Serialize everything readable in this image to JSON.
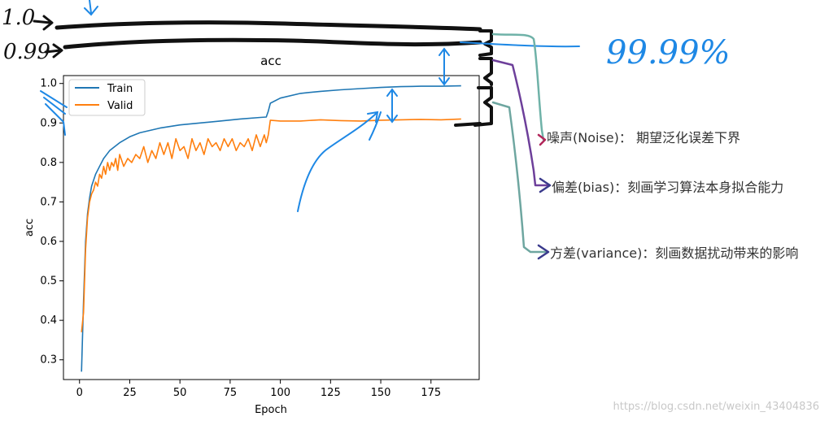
{
  "chart_data": {
    "type": "line",
    "title": "acc",
    "xlabel": "Epoch",
    "ylabel": "acc",
    "xlim": [
      -8,
      199
    ],
    "ylim": [
      0.25,
      1.02
    ],
    "xticks": [
      0,
      25,
      50,
      75,
      100,
      125,
      150,
      175
    ],
    "yticks": [
      0.3,
      0.4,
      0.5,
      0.6,
      0.7,
      0.8,
      0.9,
      1.0
    ],
    "xtick_labels": [
      "0",
      "25",
      "50",
      "75",
      "100",
      "125",
      "150",
      "175"
    ],
    "ytick_labels": [
      "0.3",
      "0.4",
      "0.5",
      "0.6",
      "0.7",
      "0.8",
      "0.9",
      "1.0"
    ],
    "legend_position": "top-left",
    "series": [
      {
        "name": "Train",
        "color": "#1f77b4",
        "x": [
          1,
          2,
          3,
          4,
          5,
          6,
          8,
          10,
          12,
          15,
          20,
          25,
          30,
          40,
          50,
          60,
          70,
          80,
          90,
          93,
          94,
          95,
          100,
          110,
          120,
          130,
          140,
          150,
          160,
          170,
          180,
          190
        ],
        "y": [
          0.27,
          0.45,
          0.6,
          0.67,
          0.71,
          0.74,
          0.77,
          0.79,
          0.81,
          0.83,
          0.85,
          0.865,
          0.875,
          0.887,
          0.895,
          0.9,
          0.905,
          0.91,
          0.914,
          0.915,
          0.93,
          0.95,
          0.963,
          0.975,
          0.98,
          0.984,
          0.987,
          0.99,
          0.992,
          0.993,
          0.993,
          0.994
        ]
      },
      {
        "name": "Valid",
        "color": "#ff7f0e",
        "x": [
          1,
          2,
          3,
          4,
          5,
          6,
          7,
          8,
          9,
          10,
          11,
          12,
          13,
          14,
          15,
          16,
          17,
          18,
          19,
          20,
          22,
          24,
          26,
          28,
          30,
          32,
          34,
          36,
          38,
          40,
          42,
          44,
          46,
          48,
          50,
          52,
          54,
          56,
          58,
          60,
          62,
          64,
          66,
          68,
          70,
          72,
          74,
          76,
          78,
          80,
          82,
          84,
          86,
          88,
          90,
          92,
          93,
          94,
          95,
          100,
          110,
          120,
          130,
          140,
          150,
          160,
          170,
          180,
          190
        ],
        "y": [
          0.37,
          0.42,
          0.58,
          0.66,
          0.7,
          0.72,
          0.73,
          0.75,
          0.74,
          0.77,
          0.76,
          0.79,
          0.77,
          0.8,
          0.78,
          0.8,
          0.79,
          0.81,
          0.78,
          0.82,
          0.79,
          0.81,
          0.8,
          0.82,
          0.81,
          0.84,
          0.8,
          0.83,
          0.81,
          0.85,
          0.82,
          0.85,
          0.81,
          0.86,
          0.83,
          0.84,
          0.81,
          0.86,
          0.83,
          0.85,
          0.82,
          0.86,
          0.84,
          0.85,
          0.83,
          0.86,
          0.84,
          0.86,
          0.83,
          0.85,
          0.84,
          0.86,
          0.83,
          0.87,
          0.84,
          0.87,
          0.85,
          0.87,
          0.907,
          0.905,
          0.905,
          0.908,
          0.906,
          0.905,
          0.907,
          0.908,
          0.909,
          0.908,
          0.91
        ]
      }
    ]
  },
  "annotations": {
    "hand_labels": [
      "1.0",
      "0.99",
      "99.99%"
    ],
    "noise_label": "噪声(Noise)：  期望泛化误差下界",
    "bias_label": "偏差(bias)：刻画学习算法本身拟合能力",
    "variance_label": "方差(variance)：刻画数据扰动带来的影响"
  },
  "watermark": "https://blog.csdn.net/weixin_43404836"
}
